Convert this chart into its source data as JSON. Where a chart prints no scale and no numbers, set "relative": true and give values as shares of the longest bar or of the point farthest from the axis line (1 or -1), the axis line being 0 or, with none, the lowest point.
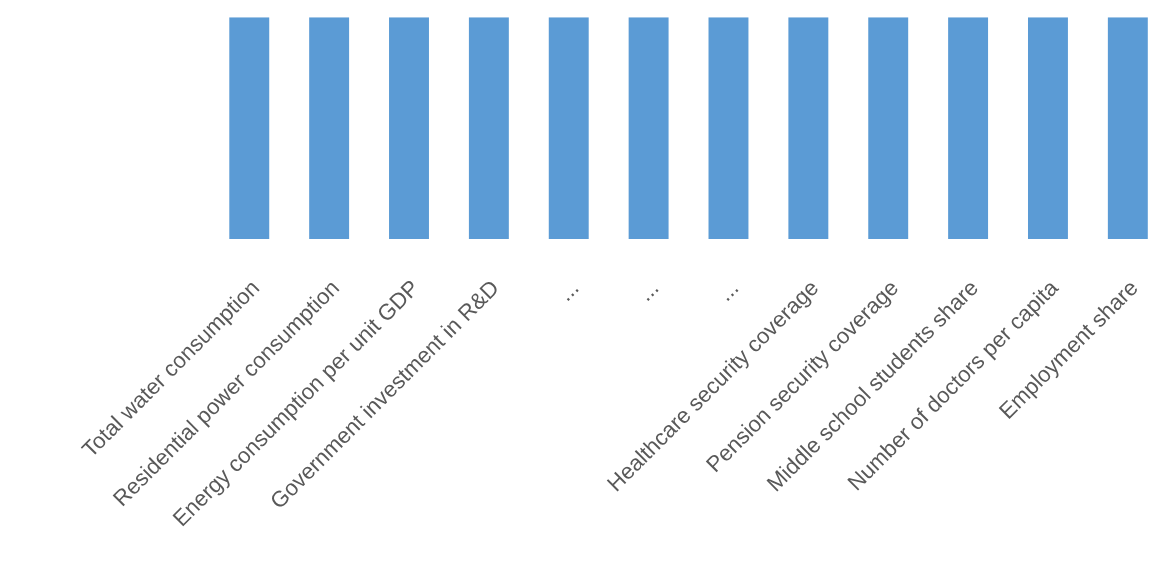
{
  "chart_data": {
    "type": "bar",
    "relative": true,
    "categories": [
      "Total water consumption",
      "Residential power consumption",
      "Energy consumption per unit GDP",
      "Government investment in R&D",
      "...",
      "...",
      "...",
      "Healthcare security coverage",
      "Pension security coverage",
      "Middle school students share",
      "Number of doctors per capita",
      "Employment share"
    ],
    "values": [
      1,
      1,
      1,
      1,
      1,
      1,
      1,
      1,
      1,
      1,
      1,
      1
    ],
    "color": "#5b9bd5",
    "grid": false,
    "legend": false
  }
}
